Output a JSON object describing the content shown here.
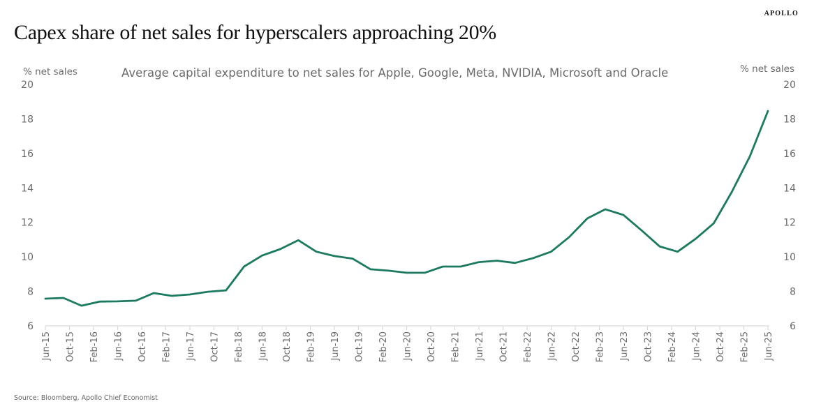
{
  "brand": "APOLLO",
  "title": "Capex share of net sales for hyperscalers approaching 20%",
  "source": "Source: Bloomberg, Apollo Chief Economist",
  "colors": {
    "line": "#1b7a5f",
    "axis": "#d9d9d9",
    "text": "#6b6b6b"
  },
  "chart_data": {
    "type": "line",
    "title": "Capex share of net sales for hyperscalers approaching 20%",
    "subtitle": "Average capital expenditure to net sales for Apple, Google, Meta, NVIDIA, Microsoft and Oracle",
    "xlabel": "",
    "ylabel": "% net sales",
    "ylabel_right": "% net sales",
    "ylim": [
      6,
      20
    ],
    "yticks": [
      6,
      8,
      10,
      12,
      14,
      16,
      18,
      20
    ],
    "grid": false,
    "legend": "none",
    "x_tick_labels": [
      "Jun-15",
      "Oct-15",
      "Feb-16",
      "Jun-16",
      "Oct-16",
      "Feb-17",
      "Jun-17",
      "Oct-17",
      "Feb-18",
      "Jun-18",
      "Oct-18",
      "Feb-19",
      "Jun-19",
      "Oct-19",
      "Feb-20",
      "Jun-20",
      "Oct-20",
      "Feb-21",
      "Jun-21",
      "Oct-21",
      "Feb-22",
      "Jun-22",
      "Oct-22",
      "Feb-23",
      "Jun-23",
      "Oct-23",
      "Feb-24",
      "Jun-24",
      "Oct-24",
      "Feb-25",
      "Jun-25"
    ],
    "x_start": "Jun-15",
    "x_end": "Jun-25",
    "frequency": "quarterly",
    "series": [
      {
        "name": "Average capex to net sales",
        "x": [
          "Jun-15",
          "Sep-15",
          "Dec-15",
          "Mar-16",
          "Jun-16",
          "Sep-16",
          "Dec-16",
          "Mar-17",
          "Jun-17",
          "Sep-17",
          "Dec-17",
          "Mar-18",
          "Jun-18",
          "Sep-18",
          "Dec-18",
          "Mar-19",
          "Jun-19",
          "Sep-19",
          "Dec-19",
          "Mar-20",
          "Jun-20",
          "Sep-20",
          "Dec-20",
          "Mar-21",
          "Jun-21",
          "Sep-21",
          "Dec-21",
          "Mar-22",
          "Jun-22",
          "Sep-22",
          "Dec-22",
          "Mar-23",
          "Jun-23",
          "Sep-23",
          "Dec-23",
          "Mar-24",
          "Jun-24",
          "Sep-24",
          "Dec-24",
          "Mar-25",
          "Jun-25"
        ],
        "values": [
          7.58,
          7.62,
          7.17,
          7.41,
          7.42,
          7.46,
          7.9,
          7.74,
          7.82,
          7.98,
          8.06,
          9.44,
          10.08,
          10.45,
          10.97,
          10.3,
          10.05,
          9.9,
          9.28,
          9.2,
          9.08,
          9.08,
          9.44,
          9.44,
          9.7,
          9.78,
          9.65,
          9.93,
          10.3,
          11.15,
          12.23,
          12.76,
          12.43,
          11.54,
          10.61,
          10.3,
          11.05,
          11.95,
          13.77,
          15.83,
          18.46
        ]
      }
    ]
  }
}
